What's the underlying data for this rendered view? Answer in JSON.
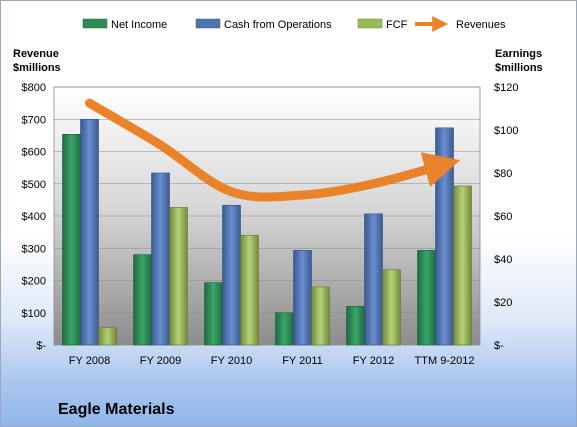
{
  "chart_data": {
    "type": "bar",
    "title": "Eagle Materials",
    "categories": [
      "FY 2008",
      "FY 2009",
      "FY 2010",
      "FY 2011",
      "FY 2012",
      "TTM 9-2012"
    ],
    "left_axis": {
      "label_line1": "Revenue",
      "label_line2": "$millions",
      "ylim": [
        0,
        800
      ],
      "ticks": [
        "$-",
        "$100",
        "$200",
        "$300",
        "$400",
        "$500",
        "$600",
        "$700",
        "$800"
      ],
      "tick_values": [
        0,
        100,
        200,
        300,
        400,
        500,
        600,
        700,
        800
      ]
    },
    "right_axis": {
      "label_line1": "Earnings",
      "label_line2": "$millions",
      "ylim": [
        0,
        120
      ],
      "ticks": [
        "$-",
        "$20",
        "$40",
        "$60",
        "$80",
        "$100",
        "$120"
      ],
      "tick_values": [
        0,
        20,
        40,
        60,
        80,
        100,
        120
      ]
    },
    "series": [
      {
        "name": "Net Income",
        "type": "bar",
        "axis": "right",
        "color": "#2e8b57",
        "values": [
          98,
          42,
          29,
          15,
          18,
          44
        ]
      },
      {
        "name": "Cash from Operations",
        "type": "bar",
        "axis": "right",
        "color": "#4f73b0",
        "values": [
          105,
          80,
          65,
          44,
          61,
          101
        ]
      },
      {
        "name": "FCF",
        "type": "bar",
        "axis": "right",
        "color": "#9bbb59",
        "values": [
          8,
          64,
          51,
          27,
          35,
          74
        ]
      },
      {
        "name": "Revenues",
        "type": "line",
        "axis": "left",
        "color": "#e8832a",
        "values": [
          750,
          620,
          475,
          465,
          500,
          560
        ]
      }
    ],
    "grid": true,
    "legend_position": "top"
  }
}
